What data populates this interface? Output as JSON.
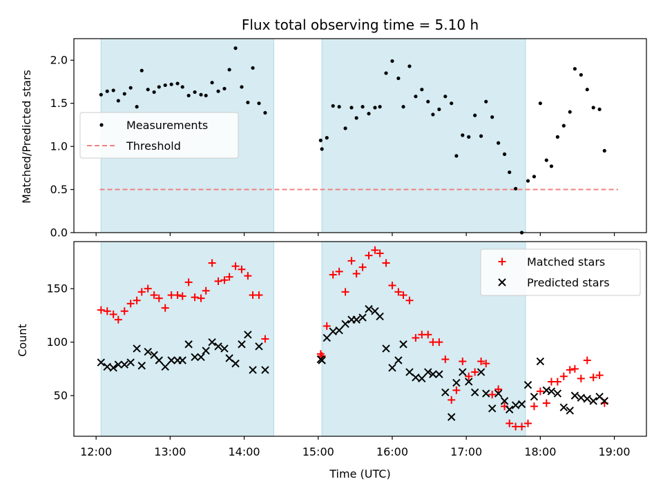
{
  "title": "Flux total observing time = 5.10 h",
  "xlabel": "Time (UTC)",
  "x_ticks": [
    "12:00",
    "13:00",
    "14:00",
    "15:00",
    "16:00",
    "17:00",
    "18:00",
    "19:00"
  ],
  "colors": {
    "shade": "#add8e6",
    "measurement": "#000000",
    "threshold": "#f08080",
    "matched": "#ff0000",
    "predicted": "#000000"
  },
  "chart_data": [
    {
      "type": "scatter",
      "panel": "top",
      "ylabel": "Matched/Predicted stars",
      "xlim": [
        "11:42",
        "19:26"
      ],
      "ylim": [
        0,
        2.25
      ],
      "y_ticks": [
        "0.0",
        "0.5",
        "1.0",
        "1.5",
        "2.0"
      ],
      "shaded_intervals": [
        [
          "12:04",
          "14:24"
        ],
        [
          "15:03",
          "17:48"
        ]
      ],
      "legend": {
        "position": "center-left",
        "entries": [
          "Measurements",
          "Threshold"
        ]
      },
      "threshold": {
        "name": "Threshold",
        "y": 0.5,
        "x_range": [
          "12:03",
          "19:03"
        ]
      },
      "series": [
        {
          "name": "Measurements",
          "marker": "dot",
          "points": [
            [
              "12:04",
              1.6
            ],
            [
              "12:09",
              1.64
            ],
            [
              "12:14",
              1.65
            ],
            [
              "12:18",
              1.53
            ],
            [
              "12:23",
              1.61
            ],
            [
              "12:28",
              1.68
            ],
            [
              "12:33",
              1.46
            ],
            [
              "12:37",
              1.88
            ],
            [
              "12:42",
              1.66
            ],
            [
              "12:47",
              1.63
            ],
            [
              "12:51",
              1.69
            ],
            [
              "12:56",
              1.71
            ],
            [
              "13:01",
              1.72
            ],
            [
              "13:06",
              1.73
            ],
            [
              "13:10",
              1.69
            ],
            [
              "13:15",
              1.59
            ],
            [
              "13:20",
              1.63
            ],
            [
              "13:25",
              1.6
            ],
            [
              "13:29",
              1.59
            ],
            [
              "13:34",
              1.74
            ],
            [
              "13:39",
              1.64
            ],
            [
              "13:44",
              1.67
            ],
            [
              "13:48",
              1.89
            ],
            [
              "13:53",
              2.14
            ],
            [
              "13:58",
              1.69
            ],
            [
              "14:03",
              1.51
            ],
            [
              "14:07",
              1.91
            ],
            [
              "14:12",
              1.5
            ],
            [
              "14:17",
              1.39
            ],
            [
              "15:02",
              1.07
            ],
            [
              "15:03",
              0.97
            ],
            [
              "15:07",
              1.1
            ],
            [
              "15:12",
              1.47
            ],
            [
              "15:17",
              1.46
            ],
            [
              "15:22",
              1.21
            ],
            [
              "15:27",
              1.45
            ],
            [
              "15:31",
              1.33
            ],
            [
              "15:36",
              1.46
            ],
            [
              "15:41",
              1.38
            ],
            [
              "15:46",
              1.45
            ],
            [
              "15:50",
              1.46
            ],
            [
              "15:55",
              1.85
            ],
            [
              "16:00",
              1.99
            ],
            [
              "16:05",
              1.79
            ],
            [
              "16:09",
              1.46
            ],
            [
              "16:14",
              1.93
            ],
            [
              "16:19",
              1.58
            ],
            [
              "16:24",
              1.66
            ],
            [
              "16:29",
              1.52
            ],
            [
              "16:33",
              1.37
            ],
            [
              "16:38",
              1.43
            ],
            [
              "16:43",
              1.58
            ],
            [
              "16:48",
              1.5
            ],
            [
              "16:52",
              0.89
            ],
            [
              "16:57",
              1.13
            ],
            [
              "17:02",
              1.11
            ],
            [
              "17:07",
              1.36
            ],
            [
              "17:12",
              1.12
            ],
            [
              "17:16",
              1.52
            ],
            [
              "17:21",
              1.34
            ],
            [
              "17:26",
              1.04
            ],
            [
              "17:31",
              0.91
            ],
            [
              "17:35",
              0.7
            ],
            [
              "17:40",
              0.51
            ],
            [
              "17:45",
              0.0
            ],
            [
              "17:50",
              0.6
            ],
            [
              "17:55",
              0.65
            ],
            [
              "18:00",
              1.5
            ],
            [
              "18:05",
              0.84
            ],
            [
              "18:09",
              0.77
            ],
            [
              "18:14",
              1.11
            ],
            [
              "18:19",
              1.24
            ],
            [
              "18:24",
              1.4
            ],
            [
              "18:28",
              1.9
            ],
            [
              "18:33",
              1.83
            ],
            [
              "18:38",
              1.66
            ],
            [
              "18:43",
              1.45
            ],
            [
              "18:48",
              1.43
            ],
            [
              "18:52",
              0.95
            ]
          ]
        }
      ]
    },
    {
      "type": "scatter",
      "panel": "bottom",
      "ylabel": "Count",
      "xlabel": "Time (UTC)",
      "xlim": [
        "11:42",
        "19:26"
      ],
      "ylim": [
        12,
        194
      ],
      "y_ticks": [
        "50",
        "100",
        "150"
      ],
      "shaded_intervals": [
        [
          "12:04",
          "14:24"
        ],
        [
          "15:03",
          "17:48"
        ]
      ],
      "legend": {
        "position": "top-right",
        "entries": [
          "Matched stars",
          "Predicted stars"
        ]
      },
      "series": [
        {
          "name": "Matched stars",
          "marker": "plus",
          "points": [
            [
              "12:04",
              130
            ],
            [
              "12:09",
              129
            ],
            [
              "12:14",
              126
            ],
            [
              "12:18",
              121
            ],
            [
              "12:23",
              129
            ],
            [
              "12:28",
              136
            ],
            [
              "12:33",
              139
            ],
            [
              "12:37",
              147
            ],
            [
              "12:42",
              150
            ],
            [
              "12:47",
              144
            ],
            [
              "12:51",
              141
            ],
            [
              "12:56",
              132
            ],
            [
              "13:01",
              144
            ],
            [
              "13:06",
              144
            ],
            [
              "13:10",
              143
            ],
            [
              "13:15",
              156
            ],
            [
              "13:20",
              142
            ],
            [
              "13:25",
              141
            ],
            [
              "13:29",
              148
            ],
            [
              "13:34",
              174
            ],
            [
              "13:39",
              157
            ],
            [
              "13:44",
              158
            ],
            [
              "13:48",
              161
            ],
            [
              "13:53",
              171
            ],
            [
              "13:58",
              168
            ],
            [
              "14:03",
              162
            ],
            [
              "14:07",
              144
            ],
            [
              "14:12",
              144
            ],
            [
              "14:17",
              103
            ],
            [
              "15:02",
              89
            ],
            [
              "15:03",
              87
            ],
            [
              "15:07",
              115
            ],
            [
              "15:12",
              163
            ],
            [
              "15:17",
              166
            ],
            [
              "15:22",
              147
            ],
            [
              "15:27",
              176
            ],
            [
              "15:31",
              164
            ],
            [
              "15:36",
              170
            ],
            [
              "15:41",
              181
            ],
            [
              "15:46",
              186
            ],
            [
              "15:50",
              183
            ],
            [
              "15:55",
              174
            ],
            [
              "16:00",
              153
            ],
            [
              "16:05",
              147
            ],
            [
              "16:09",
              144
            ],
            [
              "16:14",
              139
            ],
            [
              "16:19",
              104
            ],
            [
              "16:24",
              107
            ],
            [
              "16:29",
              107
            ],
            [
              "16:33",
              100
            ],
            [
              "16:38",
              100
            ],
            [
              "16:43",
              84
            ],
            [
              "16:48",
              46
            ],
            [
              "16:52",
              55
            ],
            [
              "16:57",
              82
            ],
            [
              "17:02",
              68
            ],
            [
              "17:07",
              72
            ],
            [
              "17:12",
              82
            ],
            [
              "17:16",
              80
            ],
            [
              "17:21",
              51
            ],
            [
              "17:26",
              56
            ],
            [
              "17:31",
              40
            ],
            [
              "17:35",
              24
            ],
            [
              "17:40",
              21
            ],
            [
              "17:45",
              21
            ],
            [
              "17:50",
              24
            ],
            [
              "17:55",
              40
            ],
            [
              "18:00",
              54
            ],
            [
              "18:05",
              43
            ],
            [
              "18:09",
              63
            ],
            [
              "18:14",
              63
            ],
            [
              "18:19",
              68
            ],
            [
              "18:24",
              74
            ],
            [
              "18:28",
              75
            ],
            [
              "18:33",
              66
            ],
            [
              "18:38",
              83
            ],
            [
              "18:43",
              67
            ],
            [
              "18:48",
              69
            ],
            [
              "18:52",
              43
            ]
          ]
        },
        {
          "name": "Predicted stars",
          "marker": "x",
          "points": [
            [
              "12:04",
              81
            ],
            [
              "12:09",
              77
            ],
            [
              "12:14",
              76
            ],
            [
              "12:18",
              79
            ],
            [
              "12:23",
              79
            ],
            [
              "12:28",
              81
            ],
            [
              "12:33",
              94
            ],
            [
              "12:37",
              78
            ],
            [
              "12:42",
              91
            ],
            [
              "12:47",
              88
            ],
            [
              "12:51",
              83
            ],
            [
              "12:56",
              77
            ],
            [
              "13:01",
              83
            ],
            [
              "13:06",
              83
            ],
            [
              "13:10",
              83
            ],
            [
              "13:15",
              98
            ],
            [
              "13:20",
              86
            ],
            [
              "13:25",
              86
            ],
            [
              "13:29",
              92
            ],
            [
              "13:34",
              100
            ],
            [
              "13:39",
              96
            ],
            [
              "13:44",
              94
            ],
            [
              "13:48",
              85
            ],
            [
              "13:53",
              80
            ],
            [
              "13:58",
              98
            ],
            [
              "14:03",
              107
            ],
            [
              "14:07",
              74
            ],
            [
              "14:12",
              96
            ],
            [
              "14:17",
              74
            ],
            [
              "15:02",
              84
            ],
            [
              "15:03",
              83
            ],
            [
              "15:07",
              104
            ],
            [
              "15:12",
              110
            ],
            [
              "15:17",
              111
            ],
            [
              "15:22",
              117
            ],
            [
              "15:27",
              121
            ],
            [
              "15:31",
              121
            ],
            [
              "15:36",
              123
            ],
            [
              "15:41",
              131
            ],
            [
              "15:46",
              129
            ],
            [
              "15:50",
              124
            ],
            [
              "15:55",
              94
            ],
            [
              "16:00",
              76
            ],
            [
              "16:05",
              83
            ],
            [
              "16:09",
              98
            ],
            [
              "16:14",
              72
            ],
            [
              "16:19",
              67
            ],
            [
              "16:24",
              66
            ],
            [
              "16:29",
              72
            ],
            [
              "16:33",
              70
            ],
            [
              "16:38",
              70
            ],
            [
              "16:43",
              53
            ],
            [
              "16:48",
              30
            ],
            [
              "16:52",
              62
            ],
            [
              "16:57",
              72
            ],
            [
              "17:02",
              63
            ],
            [
              "17:07",
              53
            ],
            [
              "17:12",
              72
            ],
            [
              "17:16",
              52
            ],
            [
              "17:21",
              38
            ],
            [
              "17:26",
              52
            ],
            [
              "17:31",
              45
            ],
            [
              "17:35",
              37
            ],
            [
              "17:40",
              41
            ],
            [
              "17:45",
              42
            ],
            [
              "17:50",
              60
            ],
            [
              "17:55",
              49
            ],
            [
              "18:00",
              82
            ],
            [
              "18:05",
              55
            ],
            [
              "18:09",
              54
            ],
            [
              "18:14",
              52
            ],
            [
              "18:19",
              39
            ],
            [
              "18:24",
              36
            ],
            [
              "18:28",
              50
            ],
            [
              "18:33",
              48
            ],
            [
              "18:38",
              47
            ],
            [
              "18:43",
              45
            ],
            [
              "18:48",
              49
            ],
            [
              "18:52",
              45
            ]
          ]
        }
      ]
    }
  ]
}
